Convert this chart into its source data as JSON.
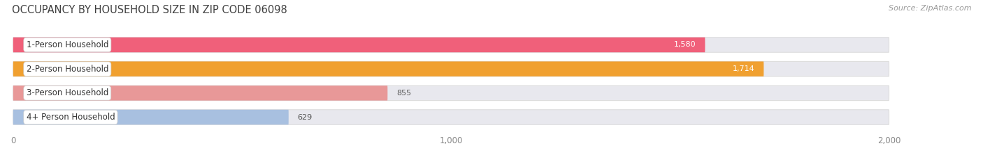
{
  "title": "OCCUPANCY BY HOUSEHOLD SIZE IN ZIP CODE 06098",
  "source": "Source: ZipAtlas.com",
  "categories": [
    "1-Person Household",
    "2-Person Household",
    "3-Person Household",
    "4+ Person Household"
  ],
  "values": [
    1580,
    1714,
    855,
    629
  ],
  "bar_colors": [
    "#f0607a",
    "#f0a030",
    "#e89898",
    "#a8c0e0"
  ],
  "value_text_colors": [
    "white",
    "white",
    "#555555",
    "#555555"
  ],
  "background_color": "#ffffff",
  "bar_bg_color": "#e8e8ee",
  "bar_border_color": "#dddddd",
  "xlim_data": [
    0,
    2000
  ],
  "xticks": [
    0,
    1000,
    2000
  ],
  "title_fontsize": 10.5,
  "label_fontsize": 8.5,
  "value_fontsize": 8,
  "source_fontsize": 8
}
